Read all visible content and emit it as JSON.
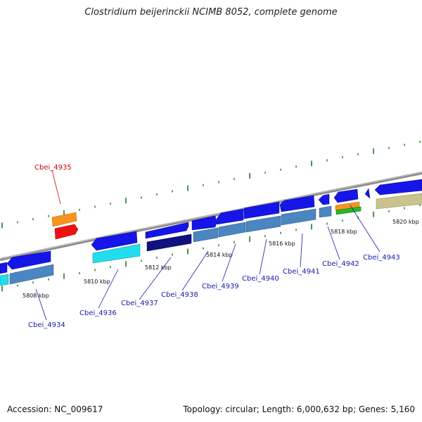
{
  "title": "Clostridium beijerinckii NCIMB 8052, complete genome",
  "footer": {
    "accession": "Accession: NC_009617",
    "summary": "Topology: circular; Length: 6,000,632 bp; Genes: 5,160"
  },
  "colors": {
    "backbone": "#8a8a8a",
    "ticks": "#1e7a1e",
    "label_blue": "#1a1aa8",
    "label_red": "#cc0000"
  },
  "kbp_labels": [
    "5808 kbp",
    "5810 kbp",
    "5812 kbp",
    "5814 kbp",
    "5816 kbp",
    "5818 kbp",
    "5820 kbp"
  ],
  "gene_labels": [
    {
      "name": "Cbei_4934",
      "color": "#1a1aa8"
    },
    {
      "name": "Cbei_4935",
      "color": "#cc0000"
    },
    {
      "name": "Cbei_4936",
      "color": "#1a1aa8"
    },
    {
      "name": "Cbei_4937",
      "color": "#1a1aa8"
    },
    {
      "name": "Cbei_4938",
      "color": "#1a1aa8"
    },
    {
      "name": "Cbei_4939",
      "color": "#1a1aa8"
    },
    {
      "name": "Cbei_4940",
      "color": "#1a1aa8"
    },
    {
      "name": "Cbei_4941",
      "color": "#1a1aa8"
    },
    {
      "name": "Cbei_4942",
      "color": "#1a1aa8"
    },
    {
      "name": "Cbei_4943",
      "color": "#1a1aa8"
    }
  ]
}
